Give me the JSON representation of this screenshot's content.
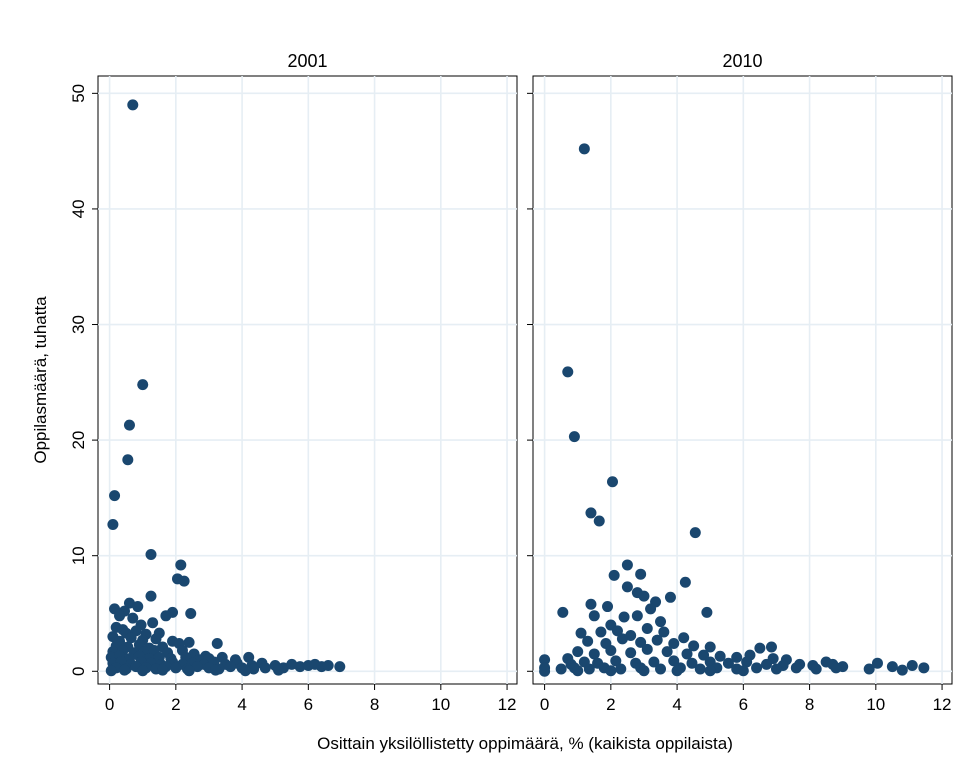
{
  "chart_data": {
    "type": "scatter",
    "ylabel": "Oppilasmäärä, tuhatta",
    "xlabel": "Osittain yksilöllistetty oppimäärä, % (kaikista oppilaista)",
    "xlim": [
      -0.35,
      12.3
    ],
    "ylim": [
      -1.1,
      51.5
    ],
    "x_ticks": [
      0,
      2,
      4,
      6,
      8,
      10,
      12
    ],
    "y_ticks": [
      0,
      10,
      20,
      30,
      40,
      50
    ],
    "grid": true,
    "marker_color": "#1a476f",
    "panels": [
      {
        "title": "2001",
        "points": [
          [
            0.7,
            49.0
          ],
          [
            1.0,
            24.8
          ],
          [
            0.6,
            21.3
          ],
          [
            0.55,
            18.3
          ],
          [
            0.15,
            15.2
          ],
          [
            0.1,
            12.7
          ],
          [
            1.25,
            10.1
          ],
          [
            2.15,
            9.2
          ],
          [
            2.05,
            8.0
          ],
          [
            2.25,
            7.8
          ],
          [
            1.25,
            6.5
          ],
          [
            0.6,
            5.9
          ],
          [
            0.85,
            5.6
          ],
          [
            0.15,
            5.4
          ],
          [
            0.45,
            5.2
          ],
          [
            0.3,
            4.8
          ],
          [
            1.9,
            5.1
          ],
          [
            2.45,
            5.0
          ],
          [
            1.7,
            4.8
          ],
          [
            1.3,
            4.2
          ],
          [
            0.7,
            4.6
          ],
          [
            0.95,
            4.0
          ],
          [
            0.2,
            3.8
          ],
          [
            0.4,
            3.6
          ],
          [
            0.1,
            3.0
          ],
          [
            0.5,
            3.3
          ],
          [
            0.8,
            3.5
          ],
          [
            1.1,
            3.2
          ],
          [
            1.5,
            3.3
          ],
          [
            0.3,
            2.6
          ],
          [
            0.65,
            2.9
          ],
          [
            1.0,
            2.7
          ],
          [
            1.4,
            2.8
          ],
          [
            1.9,
            2.6
          ],
          [
            2.1,
            2.4
          ],
          [
            2.4,
            2.5
          ],
          [
            3.25,
            2.4
          ],
          [
            0.2,
            2.2
          ],
          [
            0.55,
            2.1
          ],
          [
            0.9,
            2.3
          ],
          [
            1.2,
            2.0
          ],
          [
            1.6,
            2.1
          ],
          [
            0.1,
            1.7
          ],
          [
            0.4,
            1.8
          ],
          [
            0.75,
            1.6
          ],
          [
            1.05,
            1.7
          ],
          [
            1.35,
            1.8
          ],
          [
            1.75,
            1.6
          ],
          [
            2.2,
            1.8
          ],
          [
            2.55,
            1.5
          ],
          [
            2.9,
            1.3
          ],
          [
            0.05,
            1.2
          ],
          [
            0.3,
            1.3
          ],
          [
            0.6,
            1.1
          ],
          [
            0.9,
            1.3
          ],
          [
            1.2,
            1.1
          ],
          [
            1.5,
            1.2
          ],
          [
            1.85,
            1.1
          ],
          [
            2.3,
            1.2
          ],
          [
            2.7,
            1.0
          ],
          [
            3.0,
            1.1
          ],
          [
            3.4,
            1.2
          ],
          [
            3.8,
            1.0
          ],
          [
            4.2,
            1.2
          ],
          [
            0.1,
            0.7
          ],
          [
            0.35,
            0.8
          ],
          [
            0.65,
            0.6
          ],
          [
            0.95,
            0.8
          ],
          [
            1.25,
            0.7
          ],
          [
            1.55,
            0.6
          ],
          [
            1.9,
            0.8
          ],
          [
            2.2,
            0.6
          ],
          [
            2.5,
            0.7
          ],
          [
            2.85,
            0.6
          ],
          [
            3.15,
            0.8
          ],
          [
            3.5,
            0.6
          ],
          [
            3.85,
            0.7
          ],
          [
            4.3,
            0.5
          ],
          [
            4.6,
            0.7
          ],
          [
            0.2,
            0.3
          ],
          [
            0.5,
            0.2
          ],
          [
            0.8,
            0.4
          ],
          [
            1.1,
            0.3
          ],
          [
            1.4,
            0.2
          ],
          [
            1.7,
            0.4
          ],
          [
            2.0,
            0.3
          ],
          [
            2.35,
            0.2
          ],
          [
            2.65,
            0.4
          ],
          [
            3.0,
            0.3
          ],
          [
            3.3,
            0.2
          ],
          [
            3.65,
            0.4
          ],
          [
            4.0,
            0.3
          ],
          [
            4.35,
            0.2
          ],
          [
            4.7,
            0.3
          ],
          [
            5.0,
            0.5
          ],
          [
            5.25,
            0.3
          ],
          [
            5.5,
            0.6
          ],
          [
            5.75,
            0.4
          ],
          [
            6.0,
            0.5
          ],
          [
            6.2,
            0.6
          ],
          [
            6.4,
            0.4
          ],
          [
            6.6,
            0.5
          ],
          [
            6.95,
            0.4
          ],
          [
            0.05,
            0.05
          ],
          [
            0.45,
            0.1
          ],
          [
            1.0,
            0.05
          ],
          [
            1.6,
            0.1
          ],
          [
            2.4,
            0.05
          ],
          [
            3.2,
            0.1
          ],
          [
            4.1,
            0.05
          ],
          [
            5.1,
            0.1
          ]
        ]
      },
      {
        "title": "2010",
        "points": [
          [
            1.2,
            45.2
          ],
          [
            0.7,
            25.9
          ],
          [
            0.9,
            20.3
          ],
          [
            2.05,
            16.4
          ],
          [
            1.4,
            13.7
          ],
          [
            1.65,
            13.0
          ],
          [
            4.55,
            12.0
          ],
          [
            2.5,
            9.2
          ],
          [
            2.9,
            8.4
          ],
          [
            2.1,
            8.3
          ],
          [
            4.25,
            7.7
          ],
          [
            2.5,
            7.3
          ],
          [
            2.8,
            6.8
          ],
          [
            3.0,
            6.5
          ],
          [
            3.35,
            6.0
          ],
          [
            3.8,
            6.4
          ],
          [
            1.4,
            5.8
          ],
          [
            1.9,
            5.6
          ],
          [
            3.2,
            5.4
          ],
          [
            0.55,
            5.1
          ],
          [
            4.9,
            5.1
          ],
          [
            1.5,
            4.8
          ],
          [
            2.4,
            4.7
          ],
          [
            2.8,
            4.8
          ],
          [
            3.5,
            4.3
          ],
          [
            2.0,
            4.0
          ],
          [
            1.1,
            3.3
          ],
          [
            1.7,
            3.4
          ],
          [
            2.2,
            3.5
          ],
          [
            2.6,
            3.1
          ],
          [
            3.1,
            3.7
          ],
          [
            3.6,
            3.4
          ],
          [
            4.2,
            2.9
          ],
          [
            1.3,
            2.6
          ],
          [
            1.85,
            2.4
          ],
          [
            2.35,
            2.8
          ],
          [
            2.9,
            2.5
          ],
          [
            3.4,
            2.7
          ],
          [
            3.9,
            2.4
          ],
          [
            4.5,
            2.2
          ],
          [
            5.0,
            2.1
          ],
          [
            6.5,
            2.0
          ],
          [
            6.85,
            2.1
          ],
          [
            0.0,
            1.0
          ],
          [
            0.7,
            1.1
          ],
          [
            1.0,
            1.7
          ],
          [
            1.5,
            1.5
          ],
          [
            2.0,
            1.8
          ],
          [
            2.6,
            1.6
          ],
          [
            3.1,
            1.9
          ],
          [
            3.7,
            1.7
          ],
          [
            4.3,
            1.5
          ],
          [
            4.8,
            1.4
          ],
          [
            5.3,
            1.3
          ],
          [
            5.8,
            1.2
          ],
          [
            6.2,
            1.4
          ],
          [
            6.9,
            1.1
          ],
          [
            7.3,
            1.0
          ],
          [
            0.8,
            0.6
          ],
          [
            1.2,
            0.8
          ],
          [
            1.6,
            0.7
          ],
          [
            2.15,
            0.9
          ],
          [
            2.75,
            0.7
          ],
          [
            3.3,
            0.8
          ],
          [
            3.9,
            0.9
          ],
          [
            4.45,
            0.7
          ],
          [
            5.0,
            0.8
          ],
          [
            5.55,
            0.7
          ],
          [
            6.1,
            0.8
          ],
          [
            6.7,
            0.6
          ],
          [
            7.2,
            0.5
          ],
          [
            7.7,
            0.6
          ],
          [
            8.1,
            0.5
          ],
          [
            8.5,
            0.8
          ],
          [
            8.7,
            0.6
          ],
          [
            9.0,
            0.4
          ],
          [
            0.0,
            0.3
          ],
          [
            0.5,
            0.2
          ],
          [
            0.9,
            0.3
          ],
          [
            1.35,
            0.2
          ],
          [
            1.8,
            0.3
          ],
          [
            2.3,
            0.2
          ],
          [
            2.9,
            0.3
          ],
          [
            3.5,
            0.2
          ],
          [
            4.1,
            0.3
          ],
          [
            4.7,
            0.2
          ],
          [
            5.2,
            0.3
          ],
          [
            5.8,
            0.2
          ],
          [
            6.4,
            0.3
          ],
          [
            7.0,
            0.2
          ],
          [
            7.6,
            0.3
          ],
          [
            8.2,
            0.2
          ],
          [
            8.8,
            0.3
          ],
          [
            9.8,
            0.2
          ],
          [
            10.05,
            0.7
          ],
          [
            10.5,
            0.4
          ],
          [
            10.8,
            0.1
          ],
          [
            11.1,
            0.5
          ],
          [
            11.45,
            0.3
          ],
          [
            0.0,
            0.0
          ],
          [
            1.0,
            0.05
          ],
          [
            2.0,
            0.05
          ],
          [
            3.0,
            0.05
          ],
          [
            4.0,
            0.05
          ],
          [
            5.0,
            0.05
          ],
          [
            6.0,
            0.05
          ]
        ]
      }
    ]
  }
}
